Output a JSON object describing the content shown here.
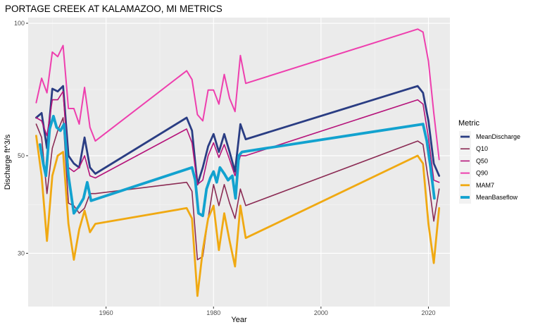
{
  "chart_data": {
    "type": "line",
    "title": "PORTAGE CREEK AT KALAMAZOO, MI  METRICS",
    "xlabel": "Year",
    "ylabel": "Discharge ft^3/s",
    "x_scale": "linear",
    "y_scale": "log10",
    "xlim": [
      1945.5,
      2024
    ],
    "ylim": [
      22.7,
      103
    ],
    "x_ticks": [
      1960,
      1980,
      2000,
      2020
    ],
    "x_tick_labels": [
      "1960",
      "1980",
      "2000",
      "2020"
    ],
    "y_ticks": [
      30,
      50,
      100
    ],
    "y_tick_labels": [
      "30",
      "50",
      "100"
    ],
    "grid": true,
    "legend": {
      "title": "Metric",
      "position": "right"
    },
    "series": [
      {
        "name": "MeanDischarge",
        "color": "#2a3d83",
        "width": 2.8,
        "x": [
          1947,
          1948,
          1949,
          1950,
          1951,
          1952,
          1953,
          1954,
          1955,
          1956,
          1957,
          1958,
          1975,
          1976,
          1977,
          1978,
          1979,
          1980,
          1981,
          1982,
          1983,
          1984,
          1985,
          1986,
          2018,
          2019,
          2020,
          2021,
          2022
        ],
        "y": [
          61,
          62.5,
          52,
          71,
          70,
          72,
          50,
          48,
          47,
          55,
          47,
          45.5,
          61,
          57,
          43,
          47,
          52.5,
          56,
          51,
          56,
          51,
          46,
          59,
          54.5,
          72,
          69.5,
          60,
          48,
          45
        ]
      },
      {
        "name": "Q10",
        "color": "#8b2b54",
        "width": 1.6,
        "x": [
          1947,
          1948,
          1949,
          1950,
          1951,
          1952,
          1953,
          1954,
          1955,
          1956,
          1957,
          1958,
          1975,
          1976,
          1977,
          1978,
          1979,
          1980,
          1981,
          1982,
          1983,
          1984,
          1985,
          1986,
          2018,
          2019,
          2020,
          2021,
          2022
        ],
        "y": [
          59,
          55,
          41,
          52,
          57,
          61,
          39,
          38.5,
          37,
          38,
          41,
          41,
          43.5,
          41.5,
          29,
          29.5,
          36,
          43,
          38.5,
          43,
          39,
          36,
          42,
          38.5,
          54,
          53,
          44,
          35.5,
          42
        ]
      },
      {
        "name": "Q50",
        "color": "#b5137a",
        "width": 1.6,
        "x": [
          1947,
          1948,
          1949,
          1950,
          1951,
          1952,
          1953,
          1954,
          1955,
          1956,
          1957,
          1958,
          1975,
          1976,
          1977,
          1978,
          1979,
          1980,
          1981,
          1982,
          1983,
          1984,
          1985,
          1986,
          2018,
          2019,
          2020,
          2021,
          2022
        ],
        "y": [
          61,
          60,
          55.5,
          67,
          67,
          70,
          47,
          46,
          47,
          50,
          45,
          44.5,
          57.5,
          53.5,
          43,
          44,
          50,
          53.5,
          49.5,
          53,
          49,
          45,
          50,
          50,
          67,
          65.5,
          55,
          44,
          43.5
        ]
      },
      {
        "name": "Q90",
        "color": "#ee3fae",
        "width": 2.0,
        "x": [
          1947,
          1948,
          1949,
          1950,
          1951,
          1952,
          1953,
          1954,
          1955,
          1956,
          1957,
          1958,
          1975,
          1976,
          1977,
          1978,
          1979,
          1980,
          1981,
          1982,
          1983,
          1984,
          1985,
          1986,
          2018,
          2019,
          2020,
          2021,
          2022
        ],
        "y": [
          66,
          75,
          69.5,
          86,
          84,
          89,
          64,
          64,
          59,
          71.5,
          58,
          54,
          78,
          74.5,
          62,
          60,
          70.5,
          70.5,
          65.5,
          76.5,
          67.5,
          63,
          84.5,
          73,
          97,
          95.5,
          82,
          62.5,
          49
        ]
      },
      {
        "name": "MAM7",
        "color": "#f0a912",
        "width": 2.8,
        "x": [
          1947,
          1948,
          1949,
          1950,
          1951,
          1952,
          1953,
          1954,
          1955,
          1956,
          1957,
          1958,
          1975,
          1976,
          1977,
          1978,
          1979,
          1980,
          1981,
          1982,
          1983,
          1984,
          1985,
          1986,
          2018,
          2019,
          2020,
          2021,
          2022
        ],
        "y": [
          55.5,
          45,
          32,
          45,
          50,
          51,
          35,
          29,
          34,
          37.5,
          33.5,
          35,
          38,
          36,
          24,
          30.5,
          36,
          38.5,
          30.5,
          37,
          32,
          28,
          38.5,
          32.5,
          50,
          48,
          35,
          28.5,
          38
        ]
      },
      {
        "name": "MeanBaseflow",
        "color": "#12a2cf",
        "width": 3.8,
        "x": [
          1947.7,
          1948.3,
          1948.8,
          1949.5,
          1950.2,
          1950.8,
          1951.5,
          1952.2,
          1953,
          1954,
          1955,
          1955.8,
          1956.5,
          1957.2,
          1976,
          1976.6,
          1977.2,
          1978,
          1978.7,
          1979.4,
          1980,
          1980.6,
          1981.2,
          1982,
          1982.7,
          1983.5,
          1984.1,
          1984.7,
          1985.3,
          2019,
          2019.7,
          2020.4,
          2021.1
        ],
        "y": [
          53,
          48,
          45,
          57.5,
          61.5,
          58,
          57,
          59,
          45,
          37,
          38.5,
          40,
          43.5,
          39.5,
          47,
          44,
          37,
          36.5,
          42,
          44.5,
          46,
          43.5,
          47,
          45.5,
          44,
          45,
          40,
          50,
          51,
          59,
          54,
          47,
          40
        ]
      }
    ]
  }
}
